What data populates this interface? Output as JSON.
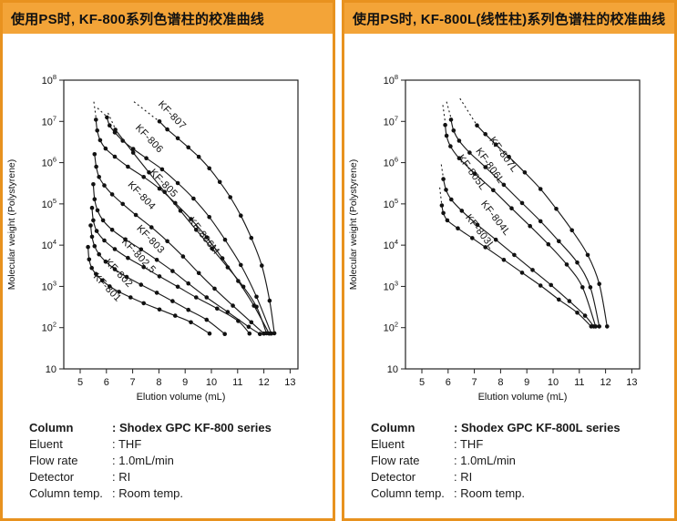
{
  "panels": [
    {
      "title": "使用PS时, KF-800系列色谱柱的校准曲线",
      "specs": [
        {
          "label": "Column",
          "value": ": Shodex GPC KF-800 series"
        },
        {
          "label": "Eluent",
          "value": ": THF"
        },
        {
          "label": "Flow rate",
          "value": ": 1.0mL/min"
        },
        {
          "label": "Detector",
          "value": ": RI"
        },
        {
          "label": "Column temp.",
          "value": ": Room temp."
        }
      ]
    },
    {
      "title": "使用PS时, KF-800L(线性柱)系列色谱柱的校准曲线",
      "specs": [
        {
          "label": "Column",
          "value": ": Shodex GPC KF-800L series"
        },
        {
          "label": "Eluent",
          "value": ": THF"
        },
        {
          "label": "Flow rate",
          "value": ": 1.0mL/min"
        },
        {
          "label": "Detector",
          "value": ": RI"
        },
        {
          "label": "Column temp.",
          "value": ": Room temp."
        }
      ]
    }
  ],
  "chart_data": [
    {
      "type": "line",
      "title": "使用PS时, KF-800系列色谱柱的校准曲线",
      "xlabel": "Elution volume (mL)",
      "ylabel": "Molecular weight (Polystyrene)",
      "x_ticks": [
        5,
        6,
        7,
        8,
        9,
        10,
        11,
        12,
        13
      ],
      "y_tick_exponents": [
        8,
        7,
        6,
        5,
        4,
        3,
        2,
        1
      ],
      "xlim": [
        4.4,
        13.3
      ],
      "ylim_log": [
        1,
        8
      ],
      "grid": false,
      "legend": "labels-on-curves",
      "series": [
        {
          "name": "KF-801",
          "label": {
            "x": 5.95,
            "dec": 2.92,
            "angle": 46
          },
          "points": [
            [
              5.3,
              9000
            ],
            [
              5.34,
              4500
            ],
            [
              5.44,
              2800
            ],
            [
              5.6,
              2000
            ],
            [
              5.84,
              1400
            ],
            [
              6.12,
              1000
            ],
            [
              6.48,
              740
            ],
            [
              6.92,
              540
            ],
            [
              7.42,
              390
            ],
            [
              8.02,
              275
            ],
            [
              8.62,
              195
            ],
            [
              9.22,
              135
            ],
            [
              9.93,
              72
            ]
          ]
        },
        {
          "name": "KF-802",
          "label": {
            "x": 6.39,
            "dec": 3.27,
            "angle": 46
          },
          "points": [
            [
              5.4,
              30000
            ],
            [
              5.45,
              16000
            ],
            [
              5.55,
              9500
            ],
            [
              5.72,
              6000
            ],
            [
              5.97,
              4000
            ],
            [
              6.32,
              2600
            ],
            [
              6.77,
              1700
            ],
            [
              7.32,
              1100
            ],
            [
              7.92,
              700
            ],
            [
              8.52,
              440
            ],
            [
              9.12,
              270
            ],
            [
              9.82,
              155
            ],
            [
              10.51,
              70
            ]
          ]
        },
        {
          "name": "KF-802.5",
          "label": {
            "x": 7.15,
            "dec": 3.69,
            "angle": 46
          },
          "points": [
            [
              5.45,
              80000
            ],
            [
              5.5,
              40000
            ],
            [
              5.63,
              22000
            ],
            [
              5.92,
              13000
            ],
            [
              6.32,
              8000
            ],
            [
              6.82,
              4900
            ],
            [
              7.42,
              2950
            ],
            [
              8.02,
              1750
            ],
            [
              8.72,
              980
            ],
            [
              9.42,
              540
            ],
            [
              10.22,
              290
            ],
            [
              11.02,
              145
            ],
            [
              11.45,
              72
            ]
          ]
        },
        {
          "name": "KF-803",
          "label": {
            "x": 7.6,
            "dec": 4.09,
            "angle": 46
          },
          "points": [
            [
              5.5,
              300000
            ],
            [
              5.55,
              130000
            ],
            [
              5.66,
              70000
            ],
            [
              5.87,
              40000
            ],
            [
              6.22,
              23500
            ],
            [
              6.72,
              13800
            ],
            [
              7.32,
              7900
            ],
            [
              7.92,
              4400
            ],
            [
              8.52,
              2350
            ],
            [
              9.12,
              1180
            ],
            [
              9.82,
              540
            ],
            [
              10.62,
              240
            ],
            [
              11.42,
              105
            ],
            [
              11.85,
              70
            ]
          ]
        },
        {
          "name": "KF-804",
          "label": {
            "x": 7.26,
            "dec": 5.15,
            "angle": 46
          },
          "points": [
            [
              5.55,
              1600000
            ],
            [
              5.61,
              800000
            ],
            [
              5.72,
              450000
            ],
            [
              5.92,
              280000
            ],
            [
              6.22,
              170000
            ],
            [
              6.62,
              100000
            ],
            [
              7.12,
              54000
            ],
            [
              7.72,
              27000
            ],
            [
              8.32,
              12500
            ],
            [
              8.92,
              5300
            ],
            [
              9.52,
              2100
            ],
            [
              10.12,
              880
            ],
            [
              10.82,
              340
            ],
            [
              11.52,
              135
            ],
            [
              12.0,
              72
            ]
          ]
        },
        {
          "name": "KF-805",
          "label": {
            "x": 8.1,
            "dec": 5.45,
            "angle": 46
          },
          "dashed": [
            [
              5.52,
              30000000
            ],
            [
              5.6,
              12500000
            ]
          ],
          "points": [
            [
              5.6,
              11000000
            ],
            [
              5.65,
              6000000
            ],
            [
              5.76,
              3500000
            ],
            [
              5.97,
              2200000
            ],
            [
              6.32,
              1400000
            ],
            [
              6.82,
              800000
            ],
            [
              7.42,
              450000
            ],
            [
              8.02,
              235000
            ],
            [
              8.62,
              105000
            ],
            [
              9.22,
              43000
            ],
            [
              9.82,
              15500
            ],
            [
              10.42,
              4800
            ],
            [
              11.02,
              1350
            ],
            [
              11.62,
              340
            ],
            [
              12.2,
              72
            ]
          ]
        },
        {
          "name": "KF-806",
          "label": {
            "x": 7.55,
            "dec": 6.53,
            "angle": 46
          },
          "dashed": [
            [
              5.66,
              21000000
            ],
            [
              6.02,
              13000000
            ]
          ],
          "points": [
            [
              6.02,
              12500000
            ],
            [
              6.12,
              8000000
            ],
            [
              6.32,
              5400000
            ],
            [
              6.62,
              3400000
            ],
            [
              7.02,
              2150000
            ],
            [
              7.52,
              1280000
            ],
            [
              8.12,
              690000
            ],
            [
              8.72,
              320000
            ],
            [
              9.32,
              135000
            ],
            [
              9.92,
              48000
            ],
            [
              10.52,
              13500
            ],
            [
              11.12,
              3300
            ],
            [
              11.72,
              560
            ],
            [
              12.28,
              72
            ]
          ]
        },
        {
          "name": "KF-806M",
          "label": {
            "x": 9.62,
            "dec": 4.18,
            "angle": 52
          },
          "dashed": [
            [
              6.06,
              16000000
            ],
            [
              6.32,
              7000000
            ]
          ],
          "points": [
            [
              6.34,
              6300000
            ],
            [
              7.02,
              1750000
            ],
            [
              7.62,
              580000
            ],
            [
              8.22,
              195000
            ],
            [
              8.82,
              68000
            ],
            [
              9.42,
              23500
            ],
            [
              10.02,
              8300
            ],
            [
              10.62,
              2900
            ],
            [
              11.22,
              980
            ],
            [
              11.72,
              320
            ],
            [
              12.1,
              73
            ]
          ]
        },
        {
          "name": "KF-807",
          "label": {
            "x": 8.42,
            "dec": 7.1,
            "angle": 46
          },
          "dashed": [
            [
              7.05,
              30000000
            ],
            [
              7.97,
              10500000
            ]
          ],
          "points": [
            [
              8.02,
              10000000
            ],
            [
              8.32,
              6400000
            ],
            [
              8.72,
              3900000
            ],
            [
              9.12,
              2350000
            ],
            [
              9.52,
              1380000
            ],
            [
              9.92,
              730000
            ],
            [
              10.32,
              340000
            ],
            [
              10.72,
              145000
            ],
            [
              11.12,
              52000
            ],
            [
              11.52,
              15000
            ],
            [
              11.92,
              3200
            ],
            [
              12.22,
              450
            ],
            [
              12.4,
              73
            ]
          ]
        }
      ]
    },
    {
      "type": "line",
      "title": "使用PS时, KF-800L(线性柱)系列色谱柱的校准曲线",
      "xlabel": "Elution volume (mL)",
      "ylabel": "Molecular weight (Polystyrene)",
      "x_ticks": [
        5,
        6,
        7,
        8,
        9,
        10,
        11,
        12,
        13
      ],
      "y_tick_exponents": [
        8,
        7,
        6,
        5,
        4,
        3,
        2,
        1
      ],
      "xlim": [
        4.4,
        13.3
      ],
      "ylim_log": [
        1,
        8
      ],
      "grid": false,
      "legend": "labels-on-curves",
      "series": [
        {
          "name": "KF-803L",
          "label": {
            "x": 7.13,
            "dec": 4.28,
            "angle": 52
          },
          "dashed": [
            [
              5.68,
              250000
            ],
            [
              5.75,
              105000
            ]
          ],
          "points": [
            [
              5.76,
              92000
            ],
            [
              5.82,
              60000
            ],
            [
              5.97,
              40000
            ],
            [
              6.37,
              25500
            ],
            [
              6.92,
              14800
            ],
            [
              7.42,
              8900
            ],
            [
              8.12,
              4400
            ],
            [
              8.82,
              2150
            ],
            [
              9.52,
              1050
            ],
            [
              10.22,
              480
            ],
            [
              10.92,
              230
            ],
            [
              11.45,
              107
            ]
          ]
        },
        {
          "name": "KF-804L",
          "label": {
            "x": 7.72,
            "dec": 4.61,
            "angle": 52
          },
          "dashed": [
            [
              5.74,
              900000
            ],
            [
              5.81,
              460000
            ]
          ],
          "points": [
            [
              5.82,
              400000
            ],
            [
              5.92,
              220000
            ],
            [
              6.12,
              128000
            ],
            [
              6.52,
              68000
            ],
            [
              7.12,
              31000
            ],
            [
              7.82,
              13500
            ],
            [
              8.52,
              5800
            ],
            [
              9.22,
              2500
            ],
            [
              9.92,
              1080
            ],
            [
              10.62,
              440
            ],
            [
              11.22,
              195
            ],
            [
              11.55,
              107
            ]
          ]
        },
        {
          "name": "KF-805L",
          "label": {
            "x": 6.82,
            "dec": 5.72,
            "angle": 54
          },
          "dashed": [
            [
              5.8,
              25000000
            ],
            [
              5.89,
              9500000
            ]
          ],
          "points": [
            [
              5.89,
              8200000
            ],
            [
              5.94,
              4500000
            ],
            [
              6.09,
              2500000
            ],
            [
              6.42,
              1280000
            ],
            [
              7.02,
              540000
            ],
            [
              7.72,
              215000
            ],
            [
              8.42,
              78000
            ],
            [
              9.12,
              29000
            ],
            [
              9.82,
              10500
            ],
            [
              10.52,
              3400
            ],
            [
              11.12,
              950
            ],
            [
              11.62,
              107
            ]
          ]
        },
        {
          "name": "KF-806L",
          "label": {
            "x": 7.5,
            "dec": 5.88,
            "angle": 54
          },
          "dashed": [
            [
              5.94,
              30000000
            ],
            [
              6.11,
              12000000
            ]
          ],
          "points": [
            [
              6.11,
              11000000
            ],
            [
              6.21,
              6000000
            ],
            [
              6.42,
              3400000
            ],
            [
              6.82,
              1750000
            ],
            [
              7.42,
              780000
            ],
            [
              8.12,
              290000
            ],
            [
              8.82,
              105000
            ],
            [
              9.52,
              38000
            ],
            [
              10.22,
              12500
            ],
            [
              10.92,
              3800
            ],
            [
              11.42,
              950
            ],
            [
              11.76,
              107
            ]
          ]
        },
        {
          "name": "KF-807L",
          "label": {
            "x": 8.02,
            "dec": 6.15,
            "angle": 54
          },
          "dashed": [
            [
              6.45,
              36000000
            ],
            [
              7.06,
              8800000
            ]
          ],
          "points": [
            [
              7.1,
              8000000
            ],
            [
              7.42,
              4900000
            ],
            [
              7.82,
              2750000
            ],
            [
              8.32,
              1380000
            ],
            [
              8.92,
              580000
            ],
            [
              9.52,
              230000
            ],
            [
              10.12,
              76000
            ],
            [
              10.72,
              23000
            ],
            [
              11.32,
              5800
            ],
            [
              11.76,
              1150
            ],
            [
              12.06,
              107
            ]
          ]
        }
      ]
    }
  ]
}
